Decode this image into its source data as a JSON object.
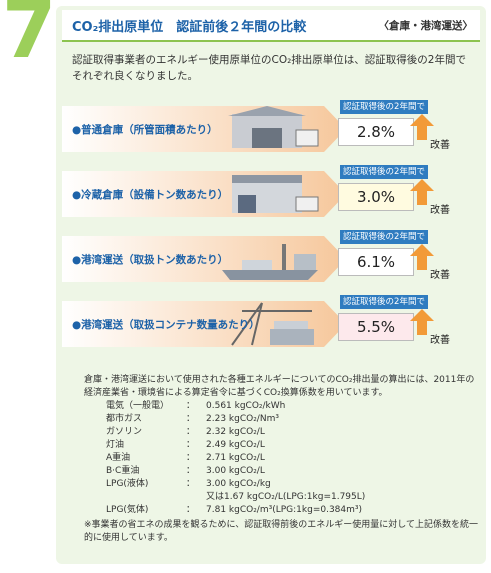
{
  "section_number": "7",
  "header": {
    "title": "CO₂排出原単位　認証前後２年間の比較",
    "subtitle": "〈倉庫・港湾運送〉"
  },
  "intro": "認証取得事業者のエネルギー使用原単位のCO₂排出原単位は、認証取得後の2年間でそれぞれ良くなりました。",
  "rows": [
    {
      "label": "●普通倉庫（所管面積あたり）",
      "period": "認証取得後の2年間で",
      "value": "2.8%",
      "result": "改善"
    },
    {
      "label": "●冷蔵倉庫（設備トン数あたり）",
      "period": "認証取得後の2年間で",
      "value": "3.0%",
      "result": "改善"
    },
    {
      "label": "●港湾運送（取扱トン数あたり）",
      "period": "認証取得後の2年間で",
      "value": "6.1%",
      "result": "改善"
    },
    {
      "label": "●港湾運送（取扱コンテナ数量あたり）",
      "period": "認証取得後の2年間で",
      "value": "5.5%",
      "result": "改善"
    }
  ],
  "notes": {
    "text": "倉庫・港湾運送において使用された各種エネルギーについてのCO₂排出量の算出には、2011年の経済産業省・環境省による算定省令に基づくCO₂換算係数を用いています。",
    "separator": "：",
    "factors": [
      {
        "name": "電気（一般電）",
        "value": "0.561 kgCO₂/kWh"
      },
      {
        "name": "都市ガス",
        "value": "2.23 kgCO₂/Nm³"
      },
      {
        "name": "ガソリン",
        "value": "2.32 kgCO₂/L"
      },
      {
        "name": "灯油",
        "value": "2.49 kgCO₂/L"
      },
      {
        "name": "A重油",
        "value": "2.71 kgCO₂/L"
      },
      {
        "name": "B·C重油",
        "value": "3.00 kgCO₂/L"
      },
      {
        "name": "LPG(液体)",
        "value": "3.00 kgCO₂/kg",
        "alt": "又は1.67 kgCO₂/L(LPG:1kg=1.795L)"
      },
      {
        "name": "LPG(気体)",
        "value": "7.81 kgCO₂/m³(LPG:1kg=0.384m³)"
      }
    ],
    "footnote": "※事業者の省エネの成果を観るために、認証取得前後のエネルギー使用量に対して上記係数を統一的に使用しています。"
  }
}
